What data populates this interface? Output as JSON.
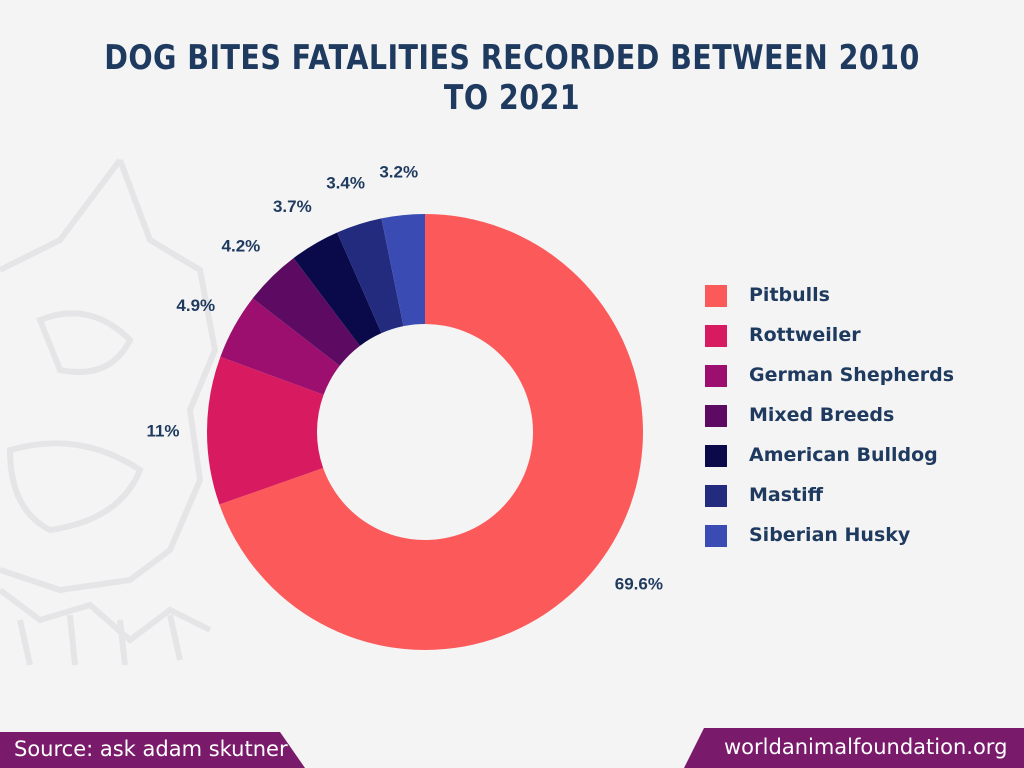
{
  "title": "DOG BITES FATALITIES RECORDED BETWEEN 2010 TO 2021",
  "chart_data": {
    "type": "pie",
    "style": "donut",
    "title": "DOG BITES FATALITIES RECORDED BETWEEN 2010 TO 2021",
    "categories": [
      "Pitbulls",
      "Rottweiler",
      "German Shepherds",
      "Mixed Breeds",
      "American Bulldog",
      "Mastiff",
      "Siberian Husky"
    ],
    "values": [
      69.6,
      11,
      4.9,
      4.2,
      3.7,
      3.4,
      3.2
    ],
    "labels": [
      "69.6%",
      "11%",
      "4.9%",
      "4.2%",
      "3.7%",
      "3.4%",
      "3.2%"
    ],
    "colors": [
      "#fc5a5a",
      "#d81b60",
      "#9c0f6e",
      "#5c0a62",
      "#0a0a4a",
      "#222b7e",
      "#3a4bb3"
    ],
    "legend_position": "right",
    "unit": "%"
  },
  "legend": [
    {
      "label": "Pitbulls",
      "color": "#fc5a5a"
    },
    {
      "label": "Rottweiler",
      "color": "#d81b60"
    },
    {
      "label": "German Shepherds",
      "color": "#9c0f6e"
    },
    {
      "label": "Mixed Breeds",
      "color": "#5c0a62"
    },
    {
      "label": "American Bulldog",
      "color": "#0a0a4a"
    },
    {
      "label": "Mastiff",
      "color": "#222b7e"
    },
    {
      "label": "Siberian Husky",
      "color": "#3a4bb3"
    }
  ],
  "footer": {
    "source": "Source: ask adam skutner",
    "site": "worldanimalfoundation.org",
    "accent_color": "#7a1a6a"
  },
  "watermark": {
    "icon": "dog-head-icon"
  }
}
